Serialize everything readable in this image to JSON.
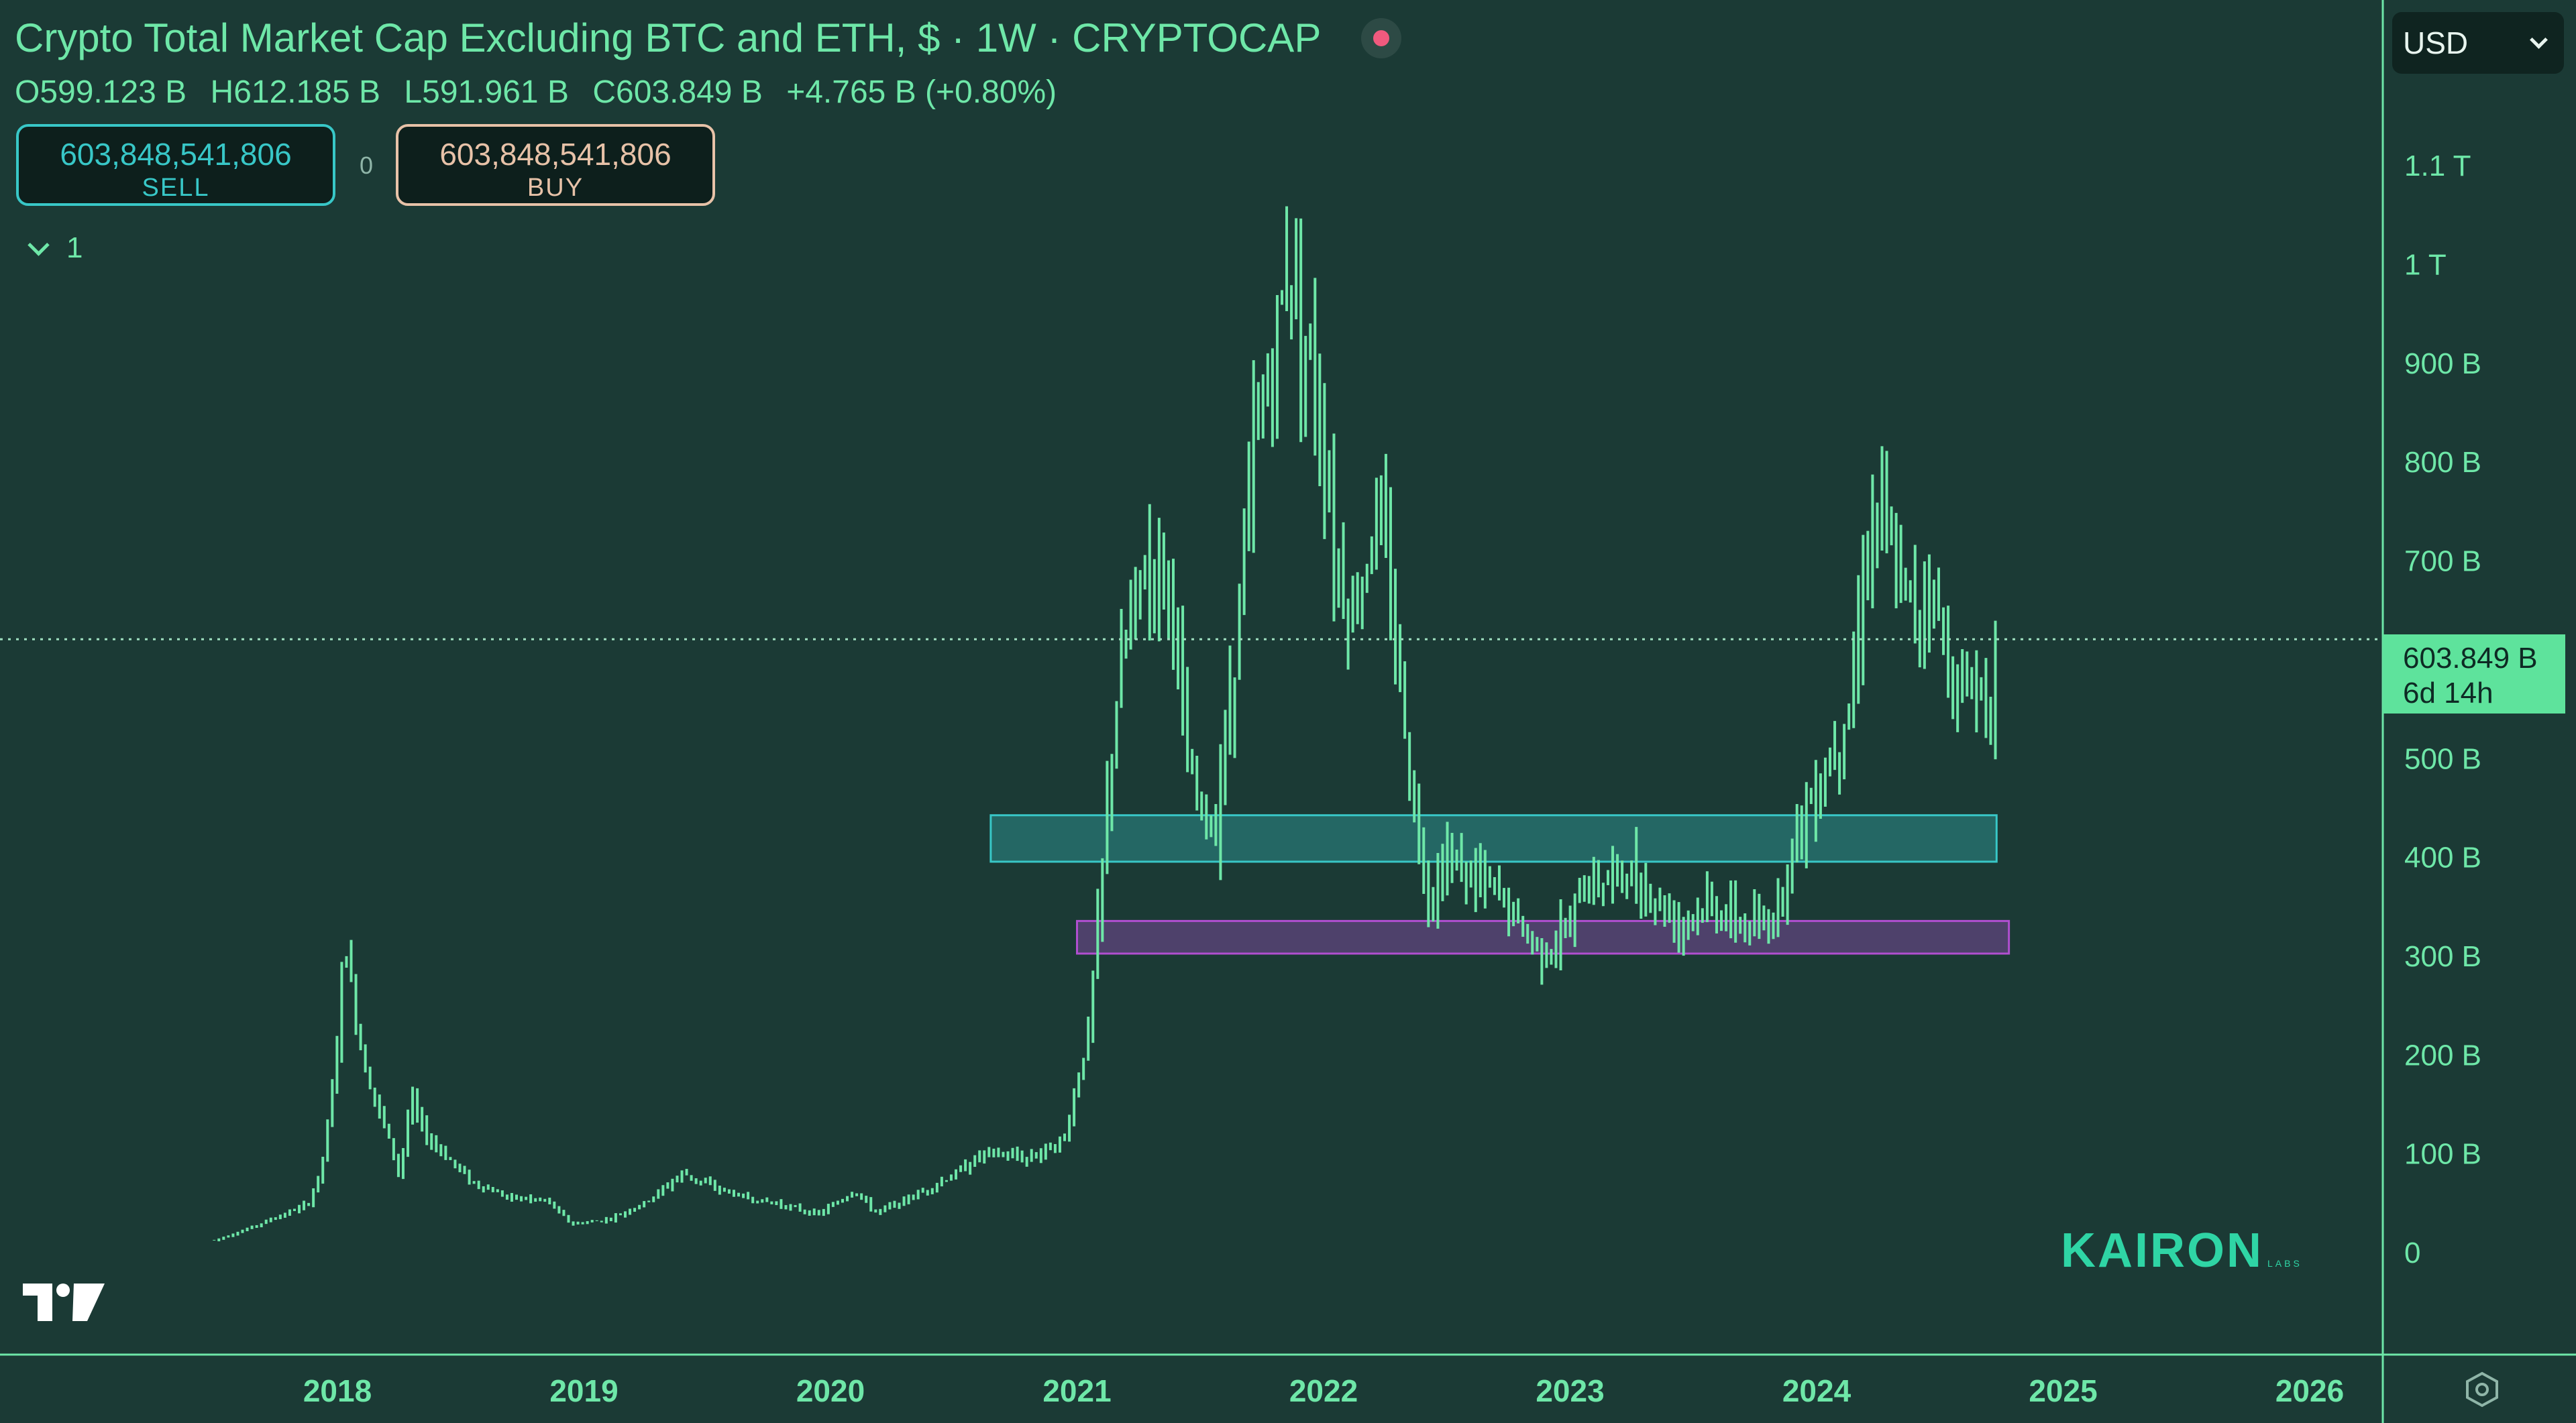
{
  "header": {
    "title": "Crypto Total Market Cap Excluding BTC and ETH, $ · 1W · CRYPTOCAP",
    "ohlc": {
      "open": "O599.123 B",
      "high": "H612.185 B",
      "low": "L591.961 B",
      "close": "C603.849 B",
      "change": "+4.765 B (+0.80%)"
    }
  },
  "trade": {
    "sell_price": "603,848,541,806",
    "sell_label": "SELL",
    "buy_price": "603,848,541,806",
    "buy_label": "BUY",
    "spread": "0"
  },
  "indicators_toggle": "1",
  "currency": "USD",
  "last_price": {
    "value": "603.849 B",
    "countdown": "6d 14h"
  },
  "watermark": {
    "brand": "KAIRON",
    "sub": "LABS"
  },
  "colors": {
    "background": "#1b3a35",
    "candle": "#6ee7a8",
    "zone_upper": "#38c7c7",
    "zone_lower": "#b04fd0",
    "price_tag": "#5ee39c",
    "axis_text": "#6ee7a8"
  },
  "chart_data": {
    "type": "bar",
    "title": "Crypto Total Market Cap Excluding BTC and ETH, $ · 1W · CRYPTOCAP",
    "x_axis": {
      "ticks": [
        "2018",
        "2019",
        "2020",
        "2021",
        "2022",
        "2023",
        "2024",
        "2025",
        "2026"
      ],
      "range": [
        2017.55,
        2026.6
      ]
    },
    "y_axis": {
      "unit": "USD",
      "ticks": [
        "0",
        "100 B",
        "200 B",
        "300 B",
        "400 B",
        "500 B",
        "700 B",
        "800 B",
        "900 B",
        "1 T",
        "1.1 T"
      ],
      "range_billions": [
        -30,
        1210
      ]
    },
    "last_price_billions": 603.849,
    "zones": [
      {
        "from_date": 2020.65,
        "to_date": 2024.73,
        "low_billions": 395,
        "high_billions": 442
      },
      {
        "from_date": 2021.0,
        "to_date": 2024.78,
        "low_billions": 302,
        "high_billions": 335
      }
    ],
    "series": [
      {
        "keypoints": [
          [
            2017.5,
            12
          ],
          [
            2017.62,
            22
          ],
          [
            2017.75,
            35
          ],
          [
            2017.88,
            48
          ],
          [
            2017.93,
            80
          ],
          [
            2017.97,
            140
          ],
          [
            2018.0,
            220
          ],
          [
            2018.03,
            320
          ],
          [
            2018.06,
            260
          ],
          [
            2018.1,
            200
          ],
          [
            2018.16,
            150
          ],
          [
            2018.2,
            120
          ],
          [
            2018.25,
            80
          ],
          [
            2018.3,
            155
          ],
          [
            2018.35,
            120
          ],
          [
            2018.45,
            95
          ],
          [
            2018.55,
            70
          ],
          [
            2018.7,
            55
          ],
          [
            2018.85,
            52
          ],
          [
            2018.95,
            28
          ],
          [
            2019.1,
            33
          ],
          [
            2019.25,
            50
          ],
          [
            2019.4,
            80
          ],
          [
            2019.5,
            68
          ],
          [
            2019.65,
            55
          ],
          [
            2019.8,
            48
          ],
          [
            2019.95,
            38
          ],
          [
            2020.1,
            62
          ],
          [
            2020.18,
            40
          ],
          [
            2020.3,
            52
          ],
          [
            2020.5,
            78
          ],
          [
            2020.62,
            100
          ],
          [
            2020.8,
            95
          ],
          [
            2020.95,
            115
          ],
          [
            2021.05,
            230
          ],
          [
            2021.1,
            380
          ],
          [
            2021.15,
            540
          ],
          [
            2021.22,
            650
          ],
          [
            2021.3,
            700
          ],
          [
            2021.38,
            680
          ],
          [
            2021.45,
            480
          ],
          [
            2021.55,
            420
          ],
          [
            2021.62,
            560
          ],
          [
            2021.72,
            820
          ],
          [
            2021.8,
            910
          ],
          [
            2021.86,
            1010
          ],
          [
            2021.92,
            940
          ],
          [
            2022.0,
            820
          ],
          [
            2022.05,
            700
          ],
          [
            2022.12,
            640
          ],
          [
            2022.17,
            700
          ],
          [
            2022.22,
            750
          ],
          [
            2022.28,
            650
          ],
          [
            2022.36,
            460
          ],
          [
            2022.43,
            360
          ],
          [
            2022.5,
            400
          ],
          [
            2022.6,
            380
          ],
          [
            2022.72,
            360
          ],
          [
            2022.82,
            320
          ],
          [
            2022.9,
            305
          ],
          [
            2022.98,
            320
          ],
          [
            2023.05,
            370
          ],
          [
            2023.15,
            380
          ],
          [
            2023.25,
            380
          ],
          [
            2023.35,
            355
          ],
          [
            2023.45,
            335
          ],
          [
            2023.55,
            350
          ],
          [
            2023.65,
            340
          ],
          [
            2023.72,
            325
          ],
          [
            2023.8,
            330
          ],
          [
            2023.85,
            360
          ],
          [
            2023.92,
            430
          ],
          [
            2024.0,
            470
          ],
          [
            2024.08,
            520
          ],
          [
            2024.15,
            580
          ],
          [
            2024.2,
            720
          ],
          [
            2024.25,
            760
          ],
          [
            2024.32,
            680
          ],
          [
            2024.4,
            650
          ],
          [
            2024.46,
            680
          ],
          [
            2024.52,
            610
          ],
          [
            2024.58,
            560
          ],
          [
            2024.65,
            580
          ],
          [
            2024.7,
            560
          ],
          [
            2024.73,
            604
          ]
        ]
      }
    ]
  }
}
